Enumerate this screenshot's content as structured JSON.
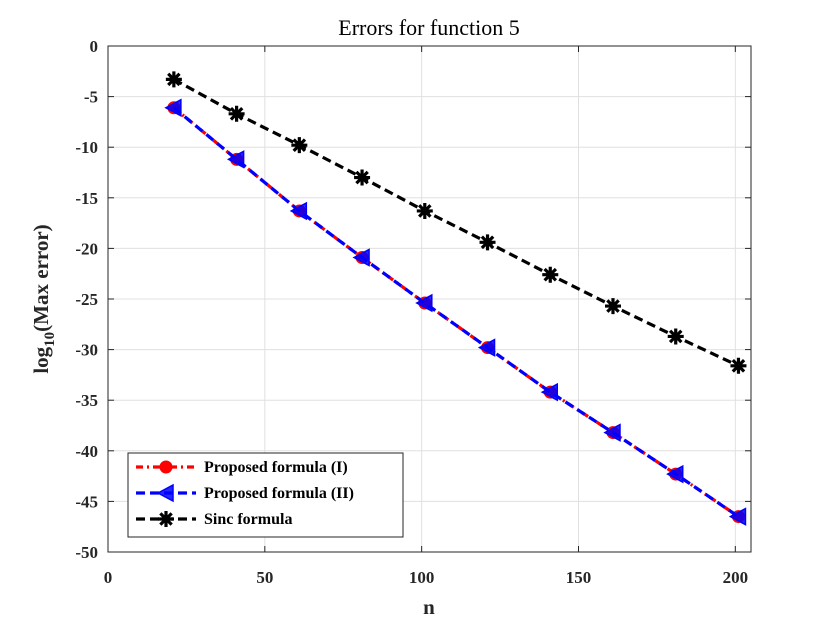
{
  "chart_data": {
    "type": "line",
    "title": "Errors for function 5",
    "xlabel": "n",
    "ylabel_main": "log",
    "ylabel_sub": "10",
    "ylabel_rest": "(Max error)",
    "xlim": [
      0,
      205
    ],
    "ylim": [
      -50,
      0
    ],
    "xticks": [
      0,
      50,
      100,
      150,
      200
    ],
    "yticks": [
      0,
      -5,
      -10,
      -15,
      -20,
      -25,
      -30,
      -35,
      -40,
      -45,
      -50
    ],
    "grid": true,
    "legend_position": "bottom-left",
    "x": [
      21,
      41,
      61,
      81,
      101,
      121,
      141,
      161,
      181,
      201
    ],
    "series": [
      {
        "name": "Proposed formula (I)",
        "color": "#ff0000",
        "line_style": "dash-dot",
        "marker": "circle",
        "values": [
          -6.1,
          -11.2,
          -16.3,
          -20.9,
          -25.4,
          -29.8,
          -34.2,
          -38.2,
          -42.3,
          -46.5
        ]
      },
      {
        "name": "Proposed formula (II)",
        "color": "#0000ff",
        "line_style": "dashed",
        "marker": "left-triangle",
        "values": [
          -6.1,
          -11.2,
          -16.3,
          -20.9,
          -25.4,
          -29.8,
          -34.2,
          -38.2,
          -42.3,
          -46.5
        ]
      },
      {
        "name": "Sinc formula",
        "color": "#000000",
        "line_style": "dashed",
        "marker": "asterisk",
        "values": [
          -3.3,
          -6.7,
          -9.8,
          -13.0,
          -16.3,
          -19.4,
          -22.6,
          -25.7,
          -28.7,
          -31.6
        ]
      }
    ]
  }
}
